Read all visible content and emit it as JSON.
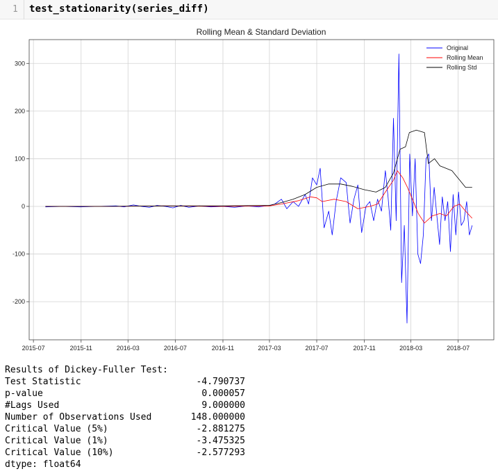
{
  "cell": {
    "line_number": "1",
    "code": "test_stationarity(series_diff)"
  },
  "colors": {
    "original": "#0000ff",
    "rolling_mean": "#ff0000",
    "rolling_std": "#000000",
    "grid": "#d3d3d3"
  },
  "chart_data": {
    "type": "line",
    "title": "Rolling Mean & Standard Deviation",
    "xlabel": "",
    "ylabel": "",
    "xlim": [
      "2015-06-20",
      "2018-10-01"
    ],
    "ylim": [
      -280,
      350
    ],
    "grid": true,
    "legend_position": "top-right",
    "x_ticks": [
      "2015-07",
      "2015-11",
      "2016-03",
      "2016-07",
      "2016-11",
      "2017-03",
      "2017-07",
      "2017-11",
      "2018-03",
      "2018-07"
    ],
    "y_ticks": [
      -200,
      -100,
      0,
      100,
      200,
      300
    ],
    "series": [
      {
        "name": "Original",
        "color": "#0000ff",
        "points": [
          [
            "2015-08-01",
            -1
          ],
          [
            "2015-09-15",
            0
          ],
          [
            "2015-10-30",
            -1
          ],
          [
            "2015-12-15",
            0
          ],
          [
            "2016-01-30",
            1
          ],
          [
            "2016-02-20",
            -1
          ],
          [
            "2016-03-15",
            3
          ],
          [
            "2016-04-05",
            0
          ],
          [
            "2016-04-25",
            -2
          ],
          [
            "2016-05-15",
            2
          ],
          [
            "2016-06-05",
            0
          ],
          [
            "2016-06-25",
            -3
          ],
          [
            "2016-07-15",
            2
          ],
          [
            "2016-08-05",
            -2
          ],
          [
            "2016-09-01",
            1
          ],
          [
            "2016-10-01",
            -1
          ],
          [
            "2016-11-01",
            0
          ],
          [
            "2016-12-01",
            -2
          ],
          [
            "2017-01-01",
            1
          ],
          [
            "2017-02-01",
            -1
          ],
          [
            "2017-03-01",
            2
          ],
          [
            "2017-03-15",
            5
          ],
          [
            "2017-04-01",
            15
          ],
          [
            "2017-04-15",
            -5
          ],
          [
            "2017-05-01",
            10
          ],
          [
            "2017-05-15",
            0
          ],
          [
            "2017-06-01",
            25
          ],
          [
            "2017-06-10",
            5
          ],
          [
            "2017-06-20",
            60
          ],
          [
            "2017-07-01",
            45
          ],
          [
            "2017-07-10",
            80
          ],
          [
            "2017-07-20",
            -45
          ],
          [
            "2017-08-01",
            -10
          ],
          [
            "2017-08-10",
            -60
          ],
          [
            "2017-08-20",
            10
          ],
          [
            "2017-09-01",
            60
          ],
          [
            "2017-09-15",
            50
          ],
          [
            "2017-09-25",
            -35
          ],
          [
            "2017-10-05",
            15
          ],
          [
            "2017-10-15",
            45
          ],
          [
            "2017-10-25",
            -55
          ],
          [
            "2017-11-05",
            0
          ],
          [
            "2017-11-15",
            10
          ],
          [
            "2017-11-25",
            -30
          ],
          [
            "2017-12-05",
            15
          ],
          [
            "2017-12-15",
            -10
          ],
          [
            "2017-12-25",
            75
          ],
          [
            "2018-01-01",
            20
          ],
          [
            "2018-01-08",
            -50
          ],
          [
            "2018-01-15",
            185
          ],
          [
            "2018-01-22",
            -30
          ],
          [
            "2018-01-29",
            320
          ],
          [
            "2018-02-05",
            -160
          ],
          [
            "2018-02-12",
            -40
          ],
          [
            "2018-02-19",
            -245
          ],
          [
            "2018-02-26",
            110
          ],
          [
            "2018-03-05",
            -20
          ],
          [
            "2018-03-12",
            100
          ],
          [
            "2018-03-19",
            -100
          ],
          [
            "2018-03-26",
            -120
          ],
          [
            "2018-04-02",
            -60
          ],
          [
            "2018-04-09",
            100
          ],
          [
            "2018-04-16",
            110
          ],
          [
            "2018-04-23",
            -30
          ],
          [
            "2018-04-30",
            40
          ],
          [
            "2018-05-07",
            -20
          ],
          [
            "2018-05-14",
            -80
          ],
          [
            "2018-05-21",
            20
          ],
          [
            "2018-05-28",
            -30
          ],
          [
            "2018-06-04",
            10
          ],
          [
            "2018-06-11",
            -95
          ],
          [
            "2018-06-18",
            25
          ],
          [
            "2018-06-25",
            -60
          ],
          [
            "2018-07-02",
            30
          ],
          [
            "2018-07-09",
            -40
          ],
          [
            "2018-07-16",
            -30
          ],
          [
            "2018-07-23",
            10
          ],
          [
            "2018-07-30",
            -60
          ],
          [
            "2018-08-06",
            -40
          ]
        ]
      },
      {
        "name": "Rolling Mean",
        "color": "#ff0000",
        "points": [
          [
            "2015-08-01",
            0
          ],
          [
            "2016-01-01",
            0
          ],
          [
            "2016-06-01",
            1
          ],
          [
            "2016-11-01",
            0
          ],
          [
            "2017-03-01",
            1
          ],
          [
            "2017-04-01",
            5
          ],
          [
            "2017-05-15",
            12
          ],
          [
            "2017-06-15",
            20
          ],
          [
            "2017-07-01",
            18
          ],
          [
            "2017-07-15",
            10
          ],
          [
            "2017-08-15",
            15
          ],
          [
            "2017-09-15",
            10
          ],
          [
            "2017-10-15",
            -5
          ],
          [
            "2017-11-15",
            0
          ],
          [
            "2017-12-05",
            5
          ],
          [
            "2017-12-25",
            30
          ],
          [
            "2018-01-15",
            55
          ],
          [
            "2018-01-25",
            75
          ],
          [
            "2018-02-08",
            60
          ],
          [
            "2018-02-20",
            40
          ],
          [
            "2018-03-05",
            15
          ],
          [
            "2018-03-20",
            -15
          ],
          [
            "2018-04-05",
            -35
          ],
          [
            "2018-04-25",
            -20
          ],
          [
            "2018-05-15",
            -15
          ],
          [
            "2018-06-01",
            -20
          ],
          [
            "2018-06-20",
            0
          ],
          [
            "2018-07-05",
            5
          ],
          [
            "2018-07-20",
            -10
          ],
          [
            "2018-08-06",
            -25
          ]
        ]
      },
      {
        "name": "Rolling Std",
        "color": "#000000",
        "points": [
          [
            "2015-08-01",
            0
          ],
          [
            "2016-01-01",
            0
          ],
          [
            "2016-06-01",
            1
          ],
          [
            "2016-11-01",
            1
          ],
          [
            "2017-03-01",
            2
          ],
          [
            "2017-04-01",
            8
          ],
          [
            "2017-05-01",
            15
          ],
          [
            "2017-06-01",
            25
          ],
          [
            "2017-07-01",
            40
          ],
          [
            "2017-08-01",
            47
          ],
          [
            "2017-09-01",
            47
          ],
          [
            "2017-10-01",
            42
          ],
          [
            "2017-11-01",
            35
          ],
          [
            "2017-12-01",
            30
          ],
          [
            "2017-12-25",
            40
          ],
          [
            "2018-01-15",
            70
          ],
          [
            "2018-02-01",
            120
          ],
          [
            "2018-02-15",
            125
          ],
          [
            "2018-02-25",
            155
          ],
          [
            "2018-03-15",
            160
          ],
          [
            "2018-04-05",
            155
          ],
          [
            "2018-04-15",
            90
          ],
          [
            "2018-05-01",
            100
          ],
          [
            "2018-05-15",
            85
          ],
          [
            "2018-06-15",
            75
          ],
          [
            "2018-07-05",
            55
          ],
          [
            "2018-07-20",
            40
          ],
          [
            "2018-08-06",
            40
          ]
        ]
      }
    ]
  },
  "results": {
    "title": "Results of Dickey-Fuller Test:",
    "rows": [
      {
        "label": "Test Statistic",
        "value": "-4.790737"
      },
      {
        "label": "p-value",
        "value": "0.000057"
      },
      {
        "label": "#Lags Used",
        "value": "9.000000"
      },
      {
        "label": "Number of Observations Used",
        "value": "148.000000"
      },
      {
        "label": "Critical Value (5%)",
        "value": "-2.881275"
      },
      {
        "label": "Critical Value (1%)",
        "value": "-3.475325"
      },
      {
        "label": "Critical Value (10%)",
        "value": "-2.577293"
      }
    ],
    "dtype": "dtype: float64"
  }
}
